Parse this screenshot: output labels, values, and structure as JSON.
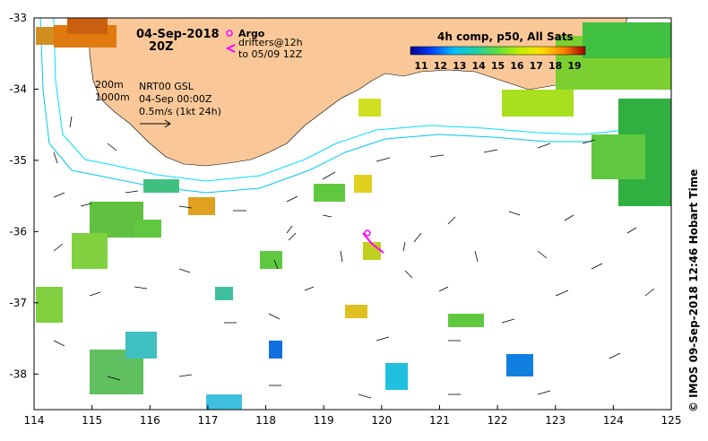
{
  "map": {
    "title_date": "04-Sep-2018",
    "title_time": "20Z",
    "product_line1": "NRT00 GSL",
    "product_line2": "04-Sep 00:00Z",
    "scale_text": "0.5m/s (1kt 24h)",
    "contour_200": "200m",
    "contour_1000": "1000m",
    "legend_argo": "Argo",
    "legend_drifters_line1": "drifters@12h",
    "legend_drifters_line2": "to 05/09 12Z",
    "colorbar_title": "4h comp, p50, All Sats",
    "colorbar_ticks": [
      "11",
      "12",
      "13",
      "14",
      "15",
      "16",
      "17",
      "18",
      "19"
    ],
    "credit": "© IMOS 09-Sep-2018 12:46 Hobart Time",
    "x_ticks": [
      "114",
      "115",
      "116",
      "117",
      "118",
      "119",
      "120",
      "121",
      "122",
      "123",
      "124",
      "125"
    ],
    "y_ticks": [
      "-33",
      "-34",
      "-35",
      "-36",
      "-37",
      "-38"
    ],
    "lon_range": [
      114,
      125
    ],
    "lat_range": [
      -38.5,
      -33
    ],
    "colors": {
      "land": "#fac898",
      "shelf_contours": "#00e0ff",
      "drifter": "#ff00ff",
      "argo": "#ff00ff",
      "arrows": "#000000"
    }
  }
}
